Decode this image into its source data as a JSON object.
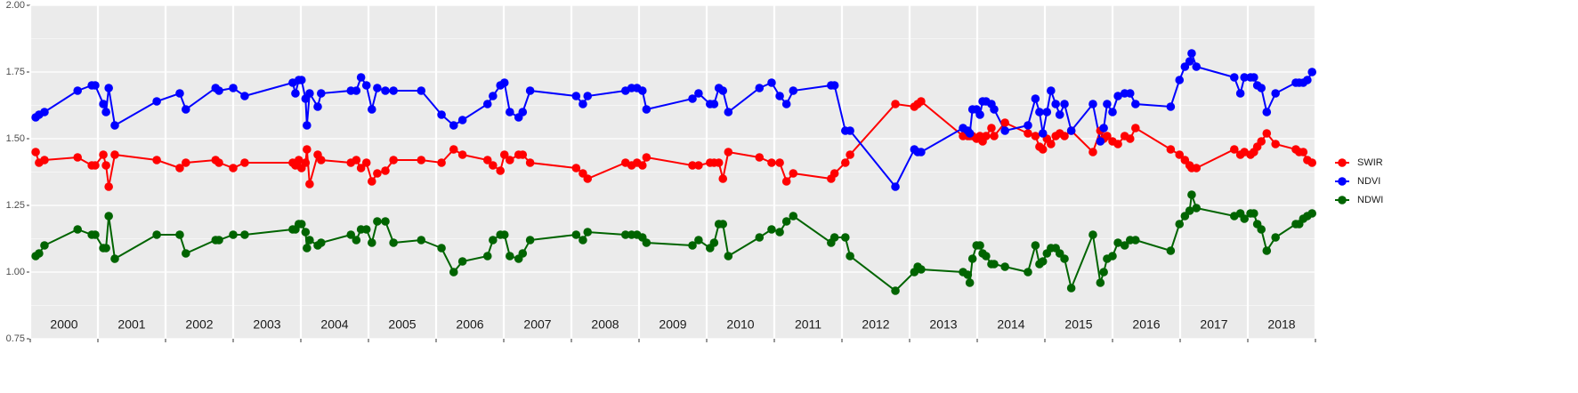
{
  "chart_data": {
    "type": "line",
    "x": [
      2000.08,
      2000.13,
      2000.21,
      2000.7,
      2000.91,
      2000.96,
      2001.08,
      2001.12,
      2001.16,
      2001.25,
      2001.87,
      2002.21,
      2002.3,
      2002.74,
      2002.79,
      2003.0,
      2003.17,
      2003.88,
      2003.92,
      2003.97,
      2004.01,
      2004.07,
      2004.09,
      2004.13,
      2004.25,
      2004.3,
      2004.74,
      2004.82,
      2004.89,
      2004.97,
      2005.05,
      2005.13,
      2005.25,
      2005.37,
      2005.78,
      2006.08,
      2006.26,
      2006.39,
      2006.76,
      2006.84,
      2006.95,
      2007.01,
      2007.09,
      2007.22,
      2007.28,
      2007.39,
      2008.07,
      2008.17,
      2008.24,
      2008.8,
      2008.89,
      2008.97,
      2009.05,
      2009.11,
      2009.79,
      2009.88,
      2010.05,
      2010.11,
      2010.18,
      2010.24,
      2010.32,
      2010.78,
      2010.96,
      2011.08,
      2011.18,
      2011.28,
      2011.84,
      2011.89,
      2012.05,
      2012.12,
      2012.79,
      2013.07,
      2013.12,
      2013.17,
      2013.79,
      2013.86,
      2013.89,
      2013.93,
      2013.99,
      2014.04,
      2014.08,
      2014.13,
      2014.21,
      2014.25,
      2014.41,
      2014.75,
      2014.86,
      2014.92,
      2014.97,
      2015.03,
      2015.09,
      2015.16,
      2015.22,
      2015.29,
      2015.39,
      2015.71,
      2015.82,
      2015.87,
      2015.92,
      2016.0,
      2016.08,
      2016.18,
      2016.26,
      2016.34,
      2016.86,
      2016.99,
      2017.07,
      2017.14,
      2017.17,
      2017.24,
      2017.8,
      2017.89,
      2017.95,
      2018.04,
      2018.09,
      2018.14,
      2018.2,
      2018.28,
      2018.41,
      2018.71,
      2018.76,
      2018.82,
      2018.88,
      2018.95
    ],
    "series": [
      {
        "name": "SWIR",
        "color": "#ff0000",
        "values": [
          1.45,
          1.41,
          1.42,
          1.43,
          1.4,
          1.4,
          1.44,
          1.4,
          1.32,
          1.44,
          1.42,
          1.39,
          1.41,
          1.42,
          1.41,
          1.39,
          1.41,
          1.41,
          1.4,
          1.42,
          1.39,
          1.41,
          1.46,
          1.33,
          1.44,
          1.42,
          1.41,
          1.42,
          1.39,
          1.41,
          1.34,
          1.37,
          1.38,
          1.42,
          1.42,
          1.41,
          1.46,
          1.44,
          1.42,
          1.4,
          1.38,
          1.44,
          1.42,
          1.44,
          1.44,
          1.41,
          1.39,
          1.37,
          1.35,
          1.41,
          1.4,
          1.41,
          1.4,
          1.43,
          1.4,
          1.4,
          1.41,
          1.41,
          1.41,
          1.35,
          1.45,
          1.43,
          1.41,
          1.41,
          1.34,
          1.37,
          1.35,
          1.37,
          1.41,
          1.44,
          1.63,
          1.62,
          1.63,
          1.64,
          1.51,
          1.51,
          1.51,
          1.51,
          1.5,
          1.51,
          1.49,
          1.51,
          1.54,
          1.51,
          1.56,
          1.52,
          1.51,
          1.47,
          1.46,
          1.5,
          1.48,
          1.51,
          1.52,
          1.51,
          1.53,
          1.45,
          1.53,
          1.5,
          1.51,
          1.49,
          1.48,
          1.51,
          1.5,
          1.54,
          1.46,
          1.44,
          1.42,
          1.4,
          1.39,
          1.39,
          1.46,
          1.44,
          1.45,
          1.44,
          1.45,
          1.47,
          1.49,
          1.52,
          1.48,
          1.46,
          1.45,
          1.45,
          1.42,
          1.41
        ]
      },
      {
        "name": "NDVI",
        "color": "#0000ff",
        "values": [
          1.58,
          1.59,
          1.6,
          1.68,
          1.7,
          1.7,
          1.63,
          1.6,
          1.69,
          1.55,
          1.64,
          1.67,
          1.61,
          1.69,
          1.68,
          1.69,
          1.66,
          1.71,
          1.67,
          1.72,
          1.72,
          1.65,
          1.55,
          1.67,
          1.62,
          1.67,
          1.68,
          1.68,
          1.73,
          1.7,
          1.61,
          1.69,
          1.68,
          1.68,
          1.68,
          1.59,
          1.55,
          1.57,
          1.63,
          1.66,
          1.7,
          1.71,
          1.6,
          1.58,
          1.6,
          1.68,
          1.66,
          1.63,
          1.66,
          1.68,
          1.69,
          1.69,
          1.68,
          1.61,
          1.65,
          1.67,
          1.63,
          1.63,
          1.69,
          1.68,
          1.6,
          1.69,
          1.71,
          1.66,
          1.63,
          1.68,
          1.7,
          1.7,
          1.53,
          1.53,
          1.32,
          1.46,
          1.45,
          1.45,
          1.54,
          1.53,
          1.52,
          1.61,
          1.61,
          1.59,
          1.64,
          1.64,
          1.63,
          1.61,
          1.53,
          1.55,
          1.65,
          1.6,
          1.52,
          1.6,
          1.68,
          1.63,
          1.59,
          1.63,
          1.53,
          1.63,
          1.49,
          1.54,
          1.63,
          1.6,
          1.66,
          1.67,
          1.67,
          1.63,
          1.62,
          1.72,
          1.77,
          1.79,
          1.82,
          1.77,
          1.73,
          1.67,
          1.73,
          1.73,
          1.73,
          1.7,
          1.69,
          1.6,
          1.67,
          1.71,
          1.71,
          1.71,
          1.72,
          1.75
        ]
      },
      {
        "name": "NDWI",
        "color": "#006400",
        "values": [
          1.06,
          1.07,
          1.1,
          1.16,
          1.14,
          1.14,
          1.09,
          1.09,
          1.21,
          1.05,
          1.14,
          1.14,
          1.07,
          1.12,
          1.12,
          1.14,
          1.14,
          1.16,
          1.16,
          1.18,
          1.18,
          1.15,
          1.09,
          1.12,
          1.1,
          1.11,
          1.14,
          1.12,
          1.16,
          1.16,
          1.11,
          1.19,
          1.19,
          1.11,
          1.12,
          1.09,
          1.0,
          1.04,
          1.06,
          1.12,
          1.14,
          1.14,
          1.06,
          1.05,
          1.07,
          1.12,
          1.14,
          1.12,
          1.15,
          1.14,
          1.14,
          1.14,
          1.13,
          1.11,
          1.1,
          1.12,
          1.09,
          1.11,
          1.18,
          1.18,
          1.06,
          1.13,
          1.16,
          1.15,
          1.19,
          1.21,
          1.11,
          1.13,
          1.13,
          1.06,
          0.93,
          1.0,
          1.02,
          1.01,
          1.0,
          0.99,
          0.96,
          1.05,
          1.1,
          1.1,
          1.07,
          1.06,
          1.03,
          1.03,
          1.02,
          1.0,
          1.1,
          1.03,
          1.04,
          1.07,
          1.09,
          1.09,
          1.07,
          1.05,
          0.94,
          1.14,
          0.96,
          1.0,
          1.05,
          1.06,
          1.11,
          1.1,
          1.12,
          1.12,
          1.08,
          1.18,
          1.21,
          1.23,
          1.29,
          1.24,
          1.21,
          1.22,
          1.2,
          1.22,
          1.22,
          1.18,
          1.16,
          1.08,
          1.13,
          1.18,
          1.18,
          1.2,
          1.21,
          1.22
        ]
      }
    ],
    "xlim": [
      2000,
      2019
    ],
    "xticks": [
      2000,
      2001,
      2002,
      2003,
      2004,
      2005,
      2006,
      2007,
      2008,
      2009,
      2010,
      2011,
      2012,
      2013,
      2014,
      2015,
      2016,
      2017,
      2018,
      2019
    ],
    "year_labels": [
      {
        "value": 2000.5,
        "label": "2000"
      },
      {
        "value": 2001.5,
        "label": "2001"
      },
      {
        "value": 2002.5,
        "label": "2002"
      },
      {
        "value": 2003.5,
        "label": "2003"
      },
      {
        "value": 2004.5,
        "label": "2004"
      },
      {
        "value": 2005.5,
        "label": "2005"
      },
      {
        "value": 2006.5,
        "label": "2006"
      },
      {
        "value": 2007.5,
        "label": "2007"
      },
      {
        "value": 2008.5,
        "label": "2008"
      },
      {
        "value": 2009.5,
        "label": "2009"
      },
      {
        "value": 2010.5,
        "label": "2010"
      },
      {
        "value": 2011.5,
        "label": "2011"
      },
      {
        "value": 2012.5,
        "label": "2012"
      },
      {
        "value": 2013.5,
        "label": "2013"
      },
      {
        "value": 2014.5,
        "label": "2014"
      },
      {
        "value": 2015.5,
        "label": "2015"
      },
      {
        "value": 2016.5,
        "label": "2016"
      },
      {
        "value": 2017.5,
        "label": "2017"
      },
      {
        "value": 2018.5,
        "label": "2018"
      }
    ],
    "ylim": [
      0.75,
      2.0
    ],
    "yticks": [
      {
        "value": 0.75,
        "label": "0.75"
      },
      {
        "value": 1.0,
        "label": "1.00"
      },
      {
        "value": 1.25,
        "label": "1.25"
      },
      {
        "value": 1.5,
        "label": "1.50"
      },
      {
        "value": 1.75,
        "label": "1.75"
      },
      {
        "value": 2.0,
        "label": "2.00"
      }
    ],
    "grid": true,
    "legend": "right"
  }
}
